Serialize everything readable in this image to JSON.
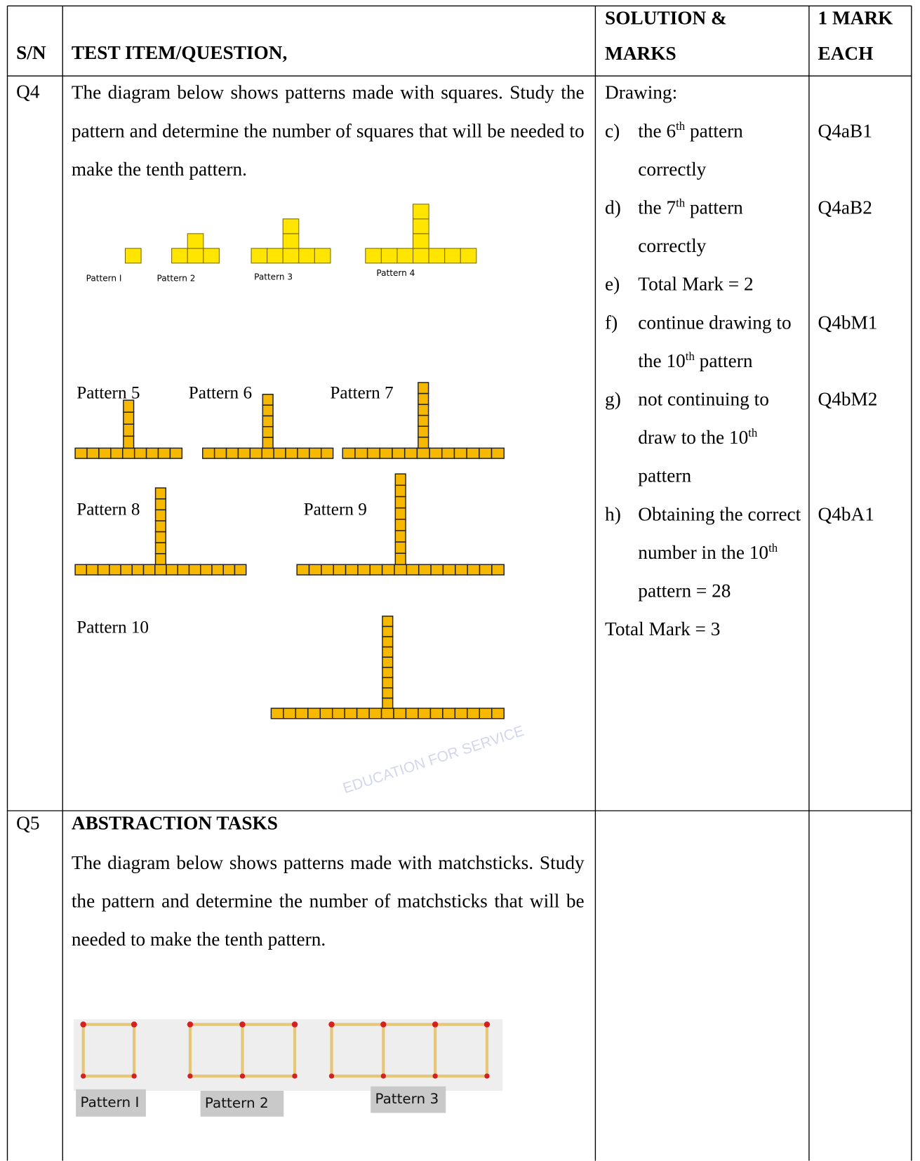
{
  "header": {
    "sn": "S/N",
    "question": "TEST ITEM/QUESTION,",
    "solution": "SOLUTION & MARKS",
    "marks": "1 MARK EACH"
  },
  "rows": [
    {
      "sn": "Q4",
      "question": {
        "text": "The diagram below shows patterns made with squares. Study the pattern and determine the number of squares that will be needed to make the tenth pattern.",
        "figure_labels": [
          "Pattern I",
          "Pattern 2",
          "Pattern 3",
          "Pattern 4",
          "Pattern 5",
          "Pattern 6",
          "Pattern 7",
          "Pattern 8",
          "Pattern 9",
          "Pattern 10"
        ],
        "watermark": "EDUCATION FOR SERVICE"
      },
      "solution": {
        "intro": "Drawing:",
        "items": [
          {
            "label": "c)",
            "parts": [
              "the 6",
              "th",
              " pattern correctly"
            ],
            "code": "Q4aB1"
          },
          {
            "label": "d)",
            "parts": [
              "the 7",
              "th",
              " pattern correctly"
            ],
            "code": "Q4aB2"
          },
          {
            "label": "e)",
            "parts": [
              "Total Mark = 2"
            ]
          },
          {
            "label": "f)",
            "parts": [
              "continue drawing to the 10",
              "th",
              " pattern"
            ],
            "code": "Q4bM1"
          },
          {
            "label": "g)",
            "parts": [
              "not continuing to draw to the 10",
              "th",
              " pattern"
            ],
            "code": "Q4bM2"
          },
          {
            "label": "h)",
            "parts": [
              "Obtaining the correct number in the 10",
              "th",
              " pattern = 28"
            ],
            "code": "Q4bA1"
          }
        ],
        "total": "Total Mark = 3"
      }
    },
    {
      "sn": "Q5",
      "question": {
        "heading": "ABSTRACTION TASKS",
        "text": "The diagram below shows patterns made with matchsticks. Study the pattern and determine the number of matchsticks that will be needed to make the tenth pattern.",
        "figure_labels": [
          "Pattern I",
          "Pattern 2",
          "Pattern 3"
        ]
      }
    }
  ]
}
